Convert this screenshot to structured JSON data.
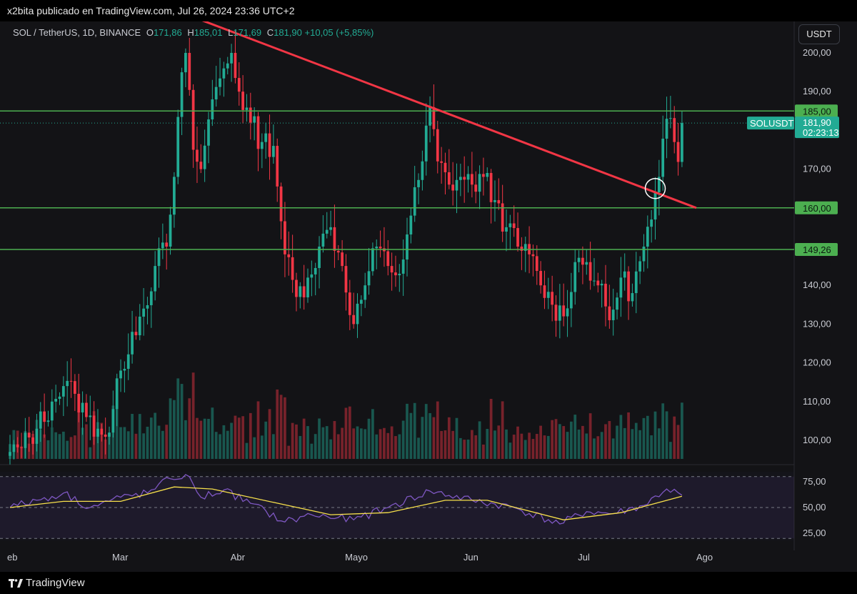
{
  "header": {
    "author": "x2bita",
    "published_text": "publicado en TradingView.com, Jul 26, 2024 23:36 UTC+2"
  },
  "legend": {
    "symbol": "SOL / TetherUS, 1D, BINANCE",
    "o_key": "O",
    "o_val": "171,86",
    "h_key": "H",
    "h_val": "185,01",
    "l_key": "L",
    "l_val": "171,69",
    "c_key": "C",
    "c_val": "181,90",
    "change": "+10,05 (+5,85%)"
  },
  "currency_button": "USDT",
  "footer": {
    "brand": "TradingView"
  },
  "colors": {
    "up": "#22ab94",
    "down": "#f23645",
    "level_line": "#4caf50",
    "trendline": "#f23645",
    "rsi_line": "#7e57c2",
    "rsi_ma": "#f7e04b"
  },
  "chart_data": {
    "type": "candlestick",
    "price_axis": {
      "ylim": [
        95,
        208
      ],
      "ticks": [
        {
          "value": 200,
          "label": "200,00"
        },
        {
          "value": 190,
          "label": "190,00"
        },
        {
          "value": 170,
          "label": "170,00"
        },
        {
          "value": 140,
          "label": "140,00"
        },
        {
          "value": 130,
          "label": "130,00"
        },
        {
          "value": 120,
          "label": "120,00"
        },
        {
          "value": 110,
          "label": "110,00"
        },
        {
          "value": 100,
          "label": "100,00"
        }
      ]
    },
    "levels": [
      {
        "value": 185,
        "label": "185,00"
      },
      {
        "value": 160,
        "label": "160,00"
      },
      {
        "value": 149.26,
        "label": "149,26"
      }
    ],
    "last_price": {
      "symbol": "SOLUSDT",
      "value": 181.9,
      "label": "181,90",
      "countdown": "02:23:13"
    },
    "trendline": {
      "from": [
        "2024-03-18",
        210
      ],
      "to": [
        "2024-07-26",
        160
      ]
    },
    "time_axis": [
      {
        "date": "2024-02-01",
        "label": "eb"
      },
      {
        "date": "2024-03-01",
        "label": "Mar"
      },
      {
        "date": "2024-04-01",
        "label": "Abr"
      },
      {
        "date": "2024-05-01",
        "label": "Mayo"
      },
      {
        "date": "2024-06-01",
        "label": "Jun"
      },
      {
        "date": "2024-07-01",
        "label": "Jul"
      },
      {
        "date": "2024-08-01",
        "label": "Ago"
      }
    ],
    "highlight": {
      "date": "2024-07-19",
      "value": 165
    },
    "waypoints": [
      {
        "date": "2024-02-01",
        "close": 97
      },
      {
        "date": "2024-02-04",
        "close": 98
      },
      {
        "date": "2024-02-08",
        "close": 103
      },
      {
        "date": "2024-02-12",
        "close": 110
      },
      {
        "date": "2024-02-15",
        "close": 114
      },
      {
        "date": "2024-02-18",
        "close": 112
      },
      {
        "date": "2024-02-21",
        "close": 106
      },
      {
        "date": "2024-02-24",
        "close": 103
      },
      {
        "date": "2024-02-27",
        "close": 102
      },
      {
        "date": "2024-03-01",
        "close": 118
      },
      {
        "date": "2024-03-04",
        "close": 128
      },
      {
        "date": "2024-03-07",
        "close": 134
      },
      {
        "date": "2024-03-10",
        "close": 145
      },
      {
        "date": "2024-03-13",
        "close": 150
      },
      {
        "date": "2024-03-15",
        "close": 168
      },
      {
        "date": "2024-03-17",
        "close": 195
      },
      {
        "date": "2024-03-18",
        "close": 200
      },
      {
        "date": "2024-03-20",
        "close": 175
      },
      {
        "date": "2024-03-22",
        "close": 170
      },
      {
        "date": "2024-03-25",
        "close": 188
      },
      {
        "date": "2024-03-28",
        "close": 196
      },
      {
        "date": "2024-03-30",
        "close": 200
      },
      {
        "date": "2024-04-01",
        "close": 190
      },
      {
        "date": "2024-04-04",
        "close": 182
      },
      {
        "date": "2024-04-07",
        "close": 177
      },
      {
        "date": "2024-04-10",
        "close": 176
      },
      {
        "date": "2024-04-13",
        "close": 148
      },
      {
        "date": "2024-04-16",
        "close": 137
      },
      {
        "date": "2024-04-19",
        "close": 142
      },
      {
        "date": "2024-04-22",
        "close": 150
      },
      {
        "date": "2024-04-25",
        "close": 155
      },
      {
        "date": "2024-04-28",
        "close": 145
      },
      {
        "date": "2024-05-01",
        "close": 130
      },
      {
        "date": "2024-05-04",
        "close": 140
      },
      {
        "date": "2024-05-07",
        "close": 150
      },
      {
        "date": "2024-05-10",
        "close": 145
      },
      {
        "date": "2024-05-13",
        "close": 143
      },
      {
        "date": "2024-05-16",
        "close": 158
      },
      {
        "date": "2024-05-19",
        "close": 172
      },
      {
        "date": "2024-05-21",
        "close": 186
      },
      {
        "date": "2024-05-23",
        "close": 172
      },
      {
        "date": "2024-05-26",
        "close": 166
      },
      {
        "date": "2024-05-29",
        "close": 168
      },
      {
        "date": "2024-06-01",
        "close": 166
      },
      {
        "date": "2024-06-04",
        "close": 168
      },
      {
        "date": "2024-06-07",
        "close": 162
      },
      {
        "date": "2024-06-10",
        "close": 155
      },
      {
        "date": "2024-06-13",
        "close": 150
      },
      {
        "date": "2024-06-16",
        "close": 148
      },
      {
        "date": "2024-06-19",
        "close": 140
      },
      {
        "date": "2024-06-22",
        "close": 135
      },
      {
        "date": "2024-06-25",
        "close": 132
      },
      {
        "date": "2024-06-28",
        "close": 146
      },
      {
        "date": "2024-07-01",
        "close": 146
      },
      {
        "date": "2024-07-04",
        "close": 140
      },
      {
        "date": "2024-07-07",
        "close": 131
      },
      {
        "date": "2024-07-10",
        "close": 142
      },
      {
        "date": "2024-07-13",
        "close": 138
      },
      {
        "date": "2024-07-16",
        "close": 150
      },
      {
        "date": "2024-07-18",
        "close": 157
      },
      {
        "date": "2024-07-20",
        "close": 168
      },
      {
        "date": "2024-07-22",
        "close": 183
      },
      {
        "date": "2024-07-24",
        "close": 177
      },
      {
        "date": "2024-07-25",
        "close": 171.86
      },
      {
        "date": "2024-07-26",
        "close": 181.9
      }
    ],
    "rsi": {
      "ticks": [
        {
          "value": 75,
          "label": "75,00"
        },
        {
          "value": 50,
          "label": "50,00"
        },
        {
          "value": 25,
          "label": "25,00"
        }
      ],
      "ylim": [
        20,
        82
      ],
      "bands": [
        80,
        20
      ],
      "points": [
        {
          "date": "2024-02-01",
          "rsi": 50
        },
        {
          "date": "2024-02-08",
          "rsi": 57
        },
        {
          "date": "2024-02-15",
          "rsi": 64
        },
        {
          "date": "2024-02-22",
          "rsi": 50
        },
        {
          "date": "2024-03-01",
          "rsi": 60
        },
        {
          "date": "2024-03-08",
          "rsi": 64
        },
        {
          "date": "2024-03-14",
          "rsi": 78
        },
        {
          "date": "2024-03-18",
          "rsi": 82
        },
        {
          "date": "2024-03-22",
          "rsi": 60
        },
        {
          "date": "2024-03-28",
          "rsi": 67
        },
        {
          "date": "2024-04-04",
          "rsi": 54
        },
        {
          "date": "2024-04-13",
          "rsi": 36
        },
        {
          "date": "2024-04-20",
          "rsi": 43
        },
        {
          "date": "2024-05-01",
          "rsi": 38
        },
        {
          "date": "2024-05-10",
          "rsi": 50
        },
        {
          "date": "2024-05-21",
          "rsi": 66
        },
        {
          "date": "2024-06-01",
          "rsi": 57
        },
        {
          "date": "2024-06-12",
          "rsi": 50
        },
        {
          "date": "2024-06-24",
          "rsi": 34
        },
        {
          "date": "2024-07-01",
          "rsi": 46
        },
        {
          "date": "2024-07-08",
          "rsi": 44
        },
        {
          "date": "2024-07-16",
          "rsi": 52
        },
        {
          "date": "2024-07-22",
          "rsi": 68
        },
        {
          "date": "2024-07-26",
          "rsi": 62
        }
      ],
      "ma_points": [
        {
          "date": "2024-02-01",
          "ma": 50
        },
        {
          "date": "2024-02-15",
          "ma": 56
        },
        {
          "date": "2024-03-01",
          "ma": 56
        },
        {
          "date": "2024-03-15",
          "ma": 70
        },
        {
          "date": "2024-03-25",
          "ma": 68
        },
        {
          "date": "2024-04-10",
          "ma": 55
        },
        {
          "date": "2024-04-25",
          "ma": 43
        },
        {
          "date": "2024-05-10",
          "ma": 45
        },
        {
          "date": "2024-05-25",
          "ma": 57
        },
        {
          "date": "2024-06-05",
          "ma": 57
        },
        {
          "date": "2024-06-25",
          "ma": 38
        },
        {
          "date": "2024-07-10",
          "ma": 45
        },
        {
          "date": "2024-07-26",
          "ma": 61
        }
      ]
    }
  }
}
